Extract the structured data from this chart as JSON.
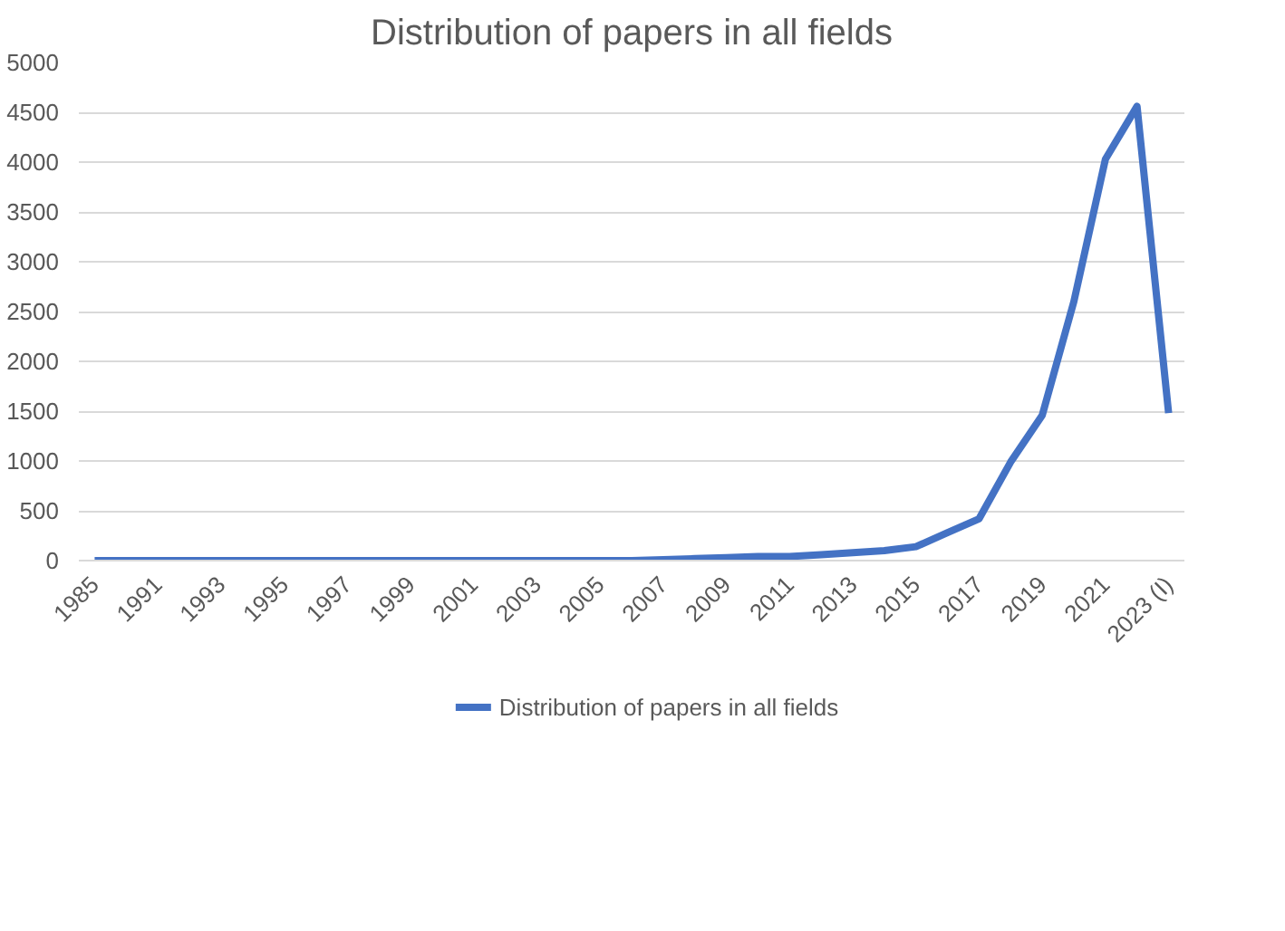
{
  "chart_data": {
    "type": "line",
    "title": "Distribution of papers in all fields",
    "categories": [
      "1985",
      null,
      "1991",
      null,
      "1993",
      null,
      "1995",
      null,
      "1997",
      null,
      "1999",
      null,
      "2001",
      null,
      "2003",
      null,
      "2005",
      null,
      "2007",
      null,
      "2009",
      null,
      "2011",
      null,
      "2013",
      null,
      "2015",
      null,
      "2017",
      null,
      "2019",
      null,
      "2021",
      null,
      "2023 (I)"
    ],
    "series": [
      {
        "name": "Distribution of papers in all fields",
        "color": "#4472c4",
        "values": [
          0,
          0,
          0,
          0,
          0,
          0,
          0,
          0,
          0,
          0,
          0,
          0,
          0,
          0,
          0,
          0,
          0,
          0,
          10,
          20,
          30,
          40,
          40,
          60,
          80,
          100,
          140,
          280,
          420,
          990,
          1460,
          2600,
          4030,
          4560,
          1480
        ]
      }
    ],
    "ylim": [
      0,
      5000
    ],
    "yticks": [
      0,
      500,
      1000,
      1500,
      2000,
      2500,
      3000,
      3500,
      4000,
      4500,
      5000
    ],
    "grid": "y",
    "legend": "bottom",
    "line_style": "solid"
  }
}
